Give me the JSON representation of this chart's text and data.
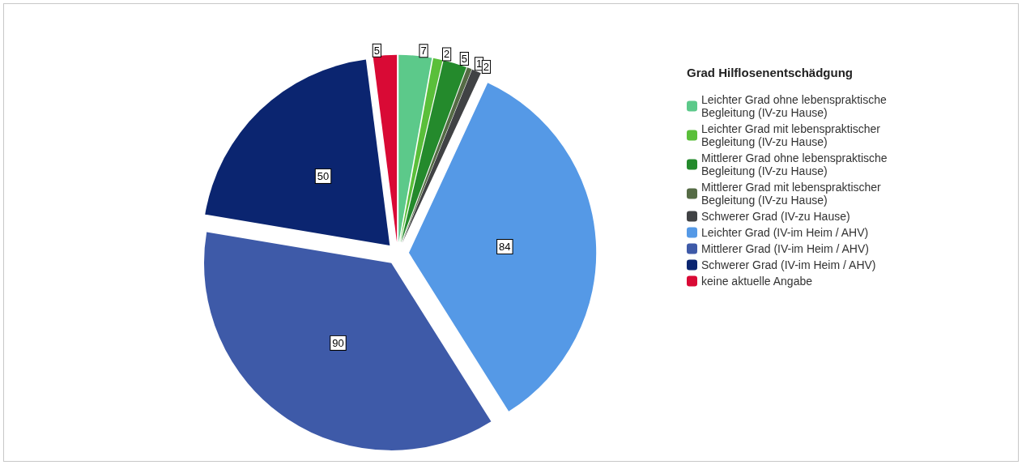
{
  "chart_data": {
    "type": "pie",
    "legend_title": "Grad Hilflosenentschädgung",
    "categories": [
      "Leichter Grad ohne lebenspraktische Begleitung (IV-zu Hause)",
      "Leichter Grad mit lebenspraktischer Begleitung (IV-zu Hause)",
      "Mittlerer Grad ohne lebenspraktische Begleitung (IV-zu Hause)",
      "Mittlerer Grad mit lebenspraktischer Begleitung (IV-zu Hause)",
      "Schwerer Grad (IV-zu Hause)",
      "Leichter Grad (IV-im Heim / AHV)",
      "Mittlerer Grad (IV-im Heim / AHV)",
      "Schwerer Grad (IV-im Heim / AHV)",
      "keine aktuelle Angabe"
    ],
    "values": [
      7,
      2,
      5,
      1,
      2,
      84,
      90,
      50,
      5
    ],
    "colors": [
      "#5cc98a",
      "#5abf3a",
      "#248a2c",
      "#556b45",
      "#404244",
      "#5599e6",
      "#3e5aa8",
      "#0b2570",
      "#d90a35"
    ],
    "data_labels": true,
    "legend": "right"
  }
}
